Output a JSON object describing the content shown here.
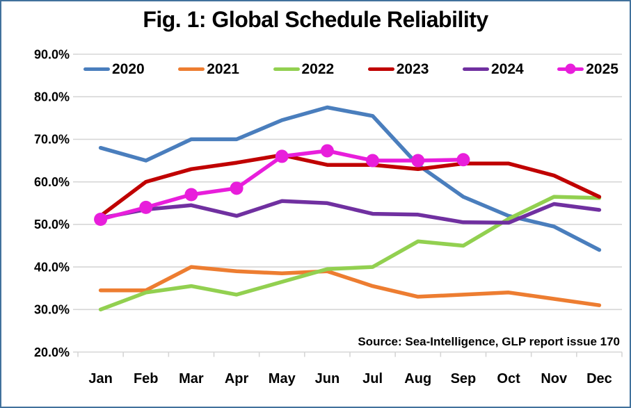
{
  "title": "Fig. 1: Global Schedule Reliability",
  "source_note": "Source: Sea-Intelligence, GLP report issue 170",
  "frame": {
    "border_color": "#41719C",
    "background": "#FFFFFF"
  },
  "axis_style": {
    "gridline_color": "#D6D6D6",
    "label_color": "#000000"
  },
  "chart_data": {
    "type": "line",
    "title": "Fig. 1: Global Schedule Reliability",
    "categories": [
      "Jan",
      "Feb",
      "Mar",
      "Apr",
      "May",
      "Jun",
      "Jul",
      "Aug",
      "Sep",
      "Oct",
      "Nov",
      "Dec"
    ],
    "y_axis": {
      "tick_labels": [
        "90.0%",
        "80.0%",
        "70.0%",
        "60.0%",
        "50.0%",
        "40.0%",
        "30.0%",
        "20.0%"
      ],
      "tick_values": [
        90,
        80,
        70,
        60,
        50,
        40,
        30,
        20
      ],
      "min": 20,
      "max": 90,
      "unit": "%"
    },
    "grid": true,
    "legend_position": "top-inside",
    "series": [
      {
        "name": "2020",
        "color": "#4A7EBD",
        "marker": "none",
        "values": [
          68,
          65,
          70,
          70,
          74.5,
          77.5,
          75.5,
          64,
          56.5,
          52,
          49.5,
          44
        ]
      },
      {
        "name": "2021",
        "color": "#ED7D31",
        "marker": "none",
        "values": [
          34.5,
          34.5,
          40,
          39,
          38.5,
          39,
          35.5,
          33,
          33.5,
          34,
          32.5,
          31
        ]
      },
      {
        "name": "2022",
        "color": "#92D050",
        "marker": "none",
        "values": [
          30,
          34,
          35.5,
          33.5,
          36.5,
          39.5,
          40,
          46,
          45,
          51.3,
          56.5,
          56.2
        ]
      },
      {
        "name": "2023",
        "color": "#C00000",
        "marker": "none",
        "values": [
          52,
          60,
          63,
          64.5,
          66.3,
          64,
          64,
          63,
          64.3,
          64.3,
          61.5,
          56.5
        ]
      },
      {
        "name": "2024",
        "color": "#7030A0",
        "marker": "none",
        "values": [
          51.5,
          53.5,
          54.5,
          52,
          55.5,
          55,
          52.5,
          52.3,
          50.5,
          50.4,
          54.8,
          53.4
        ]
      },
      {
        "name": "2025",
        "color": "#E81EDB",
        "marker": "circle",
        "values": [
          51.2,
          54,
          57,
          58.5,
          66,
          67.3,
          65,
          65,
          65.2,
          null,
          null,
          null
        ]
      }
    ]
  }
}
